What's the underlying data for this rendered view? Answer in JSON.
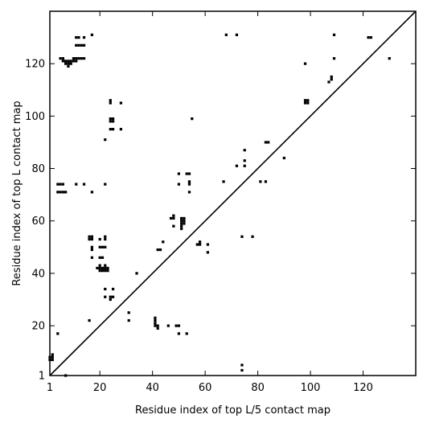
{
  "chart_data": {
    "type": "scatter",
    "title": "",
    "xlabel": "Residue index of top L/5 contact map",
    "ylabel": "Residue index of top L contact map",
    "xlim": [
      1,
      140
    ],
    "ylim": [
      1,
      140
    ],
    "x_ticks": [
      1,
      20,
      40,
      60,
      80,
      100,
      120
    ],
    "x_tick_labels": [
      "1",
      "20",
      "40",
      "60",
      "80",
      "100",
      "120"
    ],
    "y_ticks": [
      1,
      20,
      40,
      60,
      80,
      100,
      120
    ],
    "y_tick_labels": [
      "1",
      "20",
      "40",
      "60",
      "80",
      "100",
      "120"
    ],
    "grid": false,
    "marker_color": "#000000",
    "diagonal": [
      [
        1,
        1
      ],
      [
        140,
        140
      ]
    ],
    "series": [
      {
        "values": [
          [
            1,
            7
          ],
          [
            1,
            8
          ],
          [
            2,
            7
          ],
          [
            2,
            8
          ],
          [
            2,
            9
          ],
          [
            7,
            1
          ],
          [
            5,
            122
          ],
          [
            6,
            121
          ],
          [
            6,
            122
          ],
          [
            7,
            120
          ],
          [
            7,
            121
          ],
          [
            8,
            119
          ],
          [
            8,
            120
          ],
          [
            8,
            121
          ],
          [
            9,
            120
          ],
          [
            9,
            121
          ],
          [
            10,
            121
          ],
          [
            10,
            122
          ],
          [
            11,
            121
          ],
          [
            11,
            122
          ],
          [
            12,
            122
          ],
          [
            13,
            122
          ],
          [
            14,
            122
          ],
          [
            11,
            127
          ],
          [
            12,
            127
          ],
          [
            13,
            127
          ],
          [
            14,
            127
          ],
          [
            11,
            130
          ],
          [
            12,
            130
          ],
          [
            14,
            130
          ],
          [
            17,
            131
          ],
          [
            68,
            131
          ],
          [
            72,
            131
          ],
          [
            109,
            131
          ],
          [
            122,
            130
          ],
          [
            123,
            130
          ],
          [
            109,
            122
          ],
          [
            130,
            122
          ],
          [
            4,
            74
          ],
          [
            5,
            74
          ],
          [
            6,
            74
          ],
          [
            4,
            71
          ],
          [
            5,
            71
          ],
          [
            6,
            71
          ],
          [
            7,
            71
          ],
          [
            11,
            74
          ],
          [
            14,
            74
          ],
          [
            17,
            71
          ],
          [
            22,
            74
          ],
          [
            4,
            17
          ],
          [
            16,
            22
          ],
          [
            16,
            53
          ],
          [
            17,
            53
          ],
          [
            16,
            54
          ],
          [
            17,
            54
          ],
          [
            17,
            49
          ],
          [
            17,
            50
          ],
          [
            17,
            46
          ],
          [
            20,
            53
          ],
          [
            22,
            53
          ],
          [
            22,
            54
          ],
          [
            20,
            50
          ],
          [
            21,
            50
          ],
          [
            22,
            50
          ],
          [
            20,
            46
          ],
          [
            21,
            46
          ],
          [
            19,
            42
          ],
          [
            20,
            42
          ],
          [
            21,
            42
          ],
          [
            22,
            42
          ],
          [
            23,
            42
          ],
          [
            20,
            41
          ],
          [
            21,
            41
          ],
          [
            22,
            41
          ],
          [
            23,
            41
          ],
          [
            20,
            43
          ],
          [
            22,
            43
          ],
          [
            22,
            34
          ],
          [
            25,
            34
          ],
          [
            22,
            31
          ],
          [
            24,
            31
          ],
          [
            25,
            31
          ],
          [
            24,
            30
          ],
          [
            34,
            40
          ],
          [
            31,
            25
          ],
          [
            31,
            22
          ],
          [
            24,
            105
          ],
          [
            24,
            106
          ],
          [
            28,
            105
          ],
          [
            24,
            98
          ],
          [
            25,
            98
          ],
          [
            24,
            99
          ],
          [
            25,
            99
          ],
          [
            24,
            95
          ],
          [
            25,
            95
          ],
          [
            28,
            95
          ],
          [
            22,
            91
          ],
          [
            41,
            23
          ],
          [
            41,
            22
          ],
          [
            41,
            21
          ],
          [
            41,
            20
          ],
          [
            42,
            20
          ],
          [
            42,
            19
          ],
          [
            46,
            20
          ],
          [
            49,
            20
          ],
          [
            50,
            20
          ],
          [
            50,
            17
          ],
          [
            53,
            17
          ],
          [
            42,
            49
          ],
          [
            43,
            49
          ],
          [
            44,
            52
          ],
          [
            47,
            61
          ],
          [
            48,
            61
          ],
          [
            48,
            62
          ],
          [
            48,
            58
          ],
          [
            51,
            61
          ],
          [
            52,
            61
          ],
          [
            51,
            60
          ],
          [
            52,
            60
          ],
          [
            51,
            59
          ],
          [
            52,
            59
          ],
          [
            51,
            58
          ],
          [
            51,
            57
          ],
          [
            50,
            78
          ],
          [
            53,
            78
          ],
          [
            54,
            78
          ],
          [
            50,
            74
          ],
          [
            54,
            74
          ],
          [
            54,
            75
          ],
          [
            54,
            71
          ],
          [
            55,
            99
          ],
          [
            57,
            51
          ],
          [
            58,
            51
          ],
          [
            58,
            52
          ],
          [
            61,
            51
          ],
          [
            61,
            48
          ],
          [
            67,
            75
          ],
          [
            72,
            81
          ],
          [
            75,
            81
          ],
          [
            75,
            83
          ],
          [
            75,
            87
          ],
          [
            74,
            54
          ],
          [
            78,
            54
          ],
          [
            74,
            5
          ],
          [
            74,
            3
          ],
          [
            81,
            75
          ],
          [
            83,
            75
          ],
          [
            83,
            90
          ],
          [
            84,
            90
          ],
          [
            90,
            84
          ],
          [
            98,
            105
          ],
          [
            99,
            105
          ],
          [
            98,
            106
          ],
          [
            99,
            106
          ],
          [
            98,
            120
          ],
          [
            107,
            113
          ],
          [
            108,
            114
          ],
          [
            108,
            115
          ]
        ]
      }
    ]
  }
}
